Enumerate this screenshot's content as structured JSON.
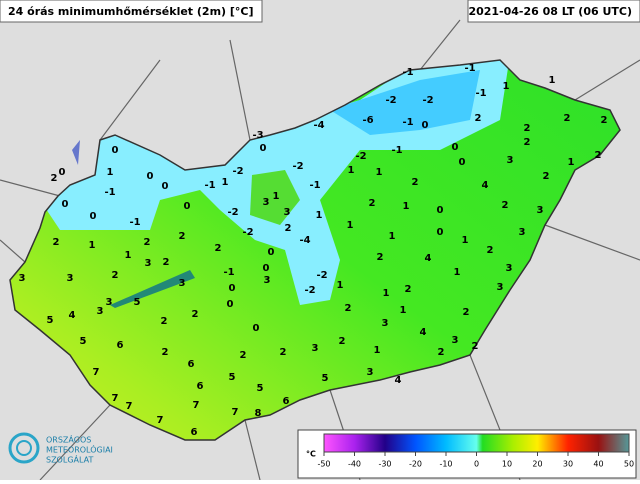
{
  "header": {
    "title": "24 órás minimumhőmérséklet (2m) [°C]",
    "date": "2021-04-26 08 LT (06 UTC)"
  },
  "stations": [
    -1,
    -1,
    1,
    -1,
    1,
    -2,
    -2,
    -4,
    -6,
    -1,
    0,
    2,
    2,
    2,
    -3,
    2,
    0,
    0,
    -2,
    -1,
    0,
    2,
    2,
    -2,
    1,
    1,
    0,
    3,
    0,
    2,
    1,
    0,
    0,
    -2,
    1,
    -1,
    -1,
    2,
    4,
    2,
    1,
    -1,
    0,
    0,
    3,
    1,
    3,
    2,
    1,
    2,
    0,
    3,
    0,
    -1,
    -2,
    2,
    1,
    1,
    -2,
    3,
    0,
    2,
    1,
    -4,
    2,
    1,
    1,
    2,
    2,
    0,
    2,
    1,
    2,
    3,
    2,
    -1,
    0,
    -2,
    1,
    3,
    3,
    3,
    2,
    3,
    4,
    0,
    3,
    1,
    3,
    -2,
    1,
    2,
    3,
    5,
    3,
    0,
    2,
    1,
    2,
    5,
    4,
    2,
    2,
    3,
    0,
    4,
    5,
    6,
    2,
    3,
    2,
    3,
    2,
    2,
    2,
    1,
    2,
    7,
    6,
    5,
    3,
    5,
    4,
    6,
    5,
    7,
    7,
    7,
    6,
    7,
    8,
    7,
    6
  ],
  "legend": {
    "unit": "°C",
    "ticks": [
      -50,
      -40,
      -30,
      -20,
      -10,
      0,
      10,
      20,
      30,
      40,
      50
    ]
  },
  "logo": {
    "line1": "ORSZÁGOS",
    "line2": "METEOROLÓGIAI",
    "line3": "SZOLGÁLAT"
  }
}
